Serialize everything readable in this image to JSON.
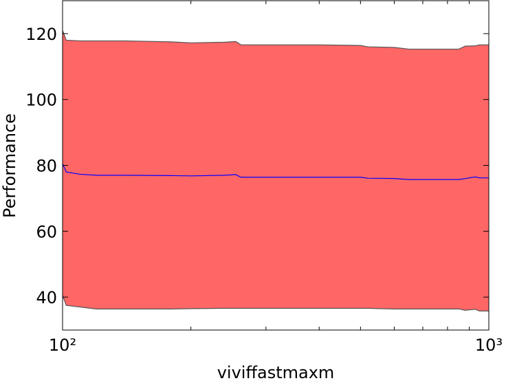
{
  "chart_data": {
    "type": "line",
    "xlabel": "viviffastmaxm",
    "ylabel": "Performance",
    "xscale": "log",
    "x": [
      100,
      102,
      110,
      120,
      140,
      180,
      200,
      240,
      255,
      262,
      400,
      500,
      520,
      600,
      650,
      850,
      880,
      930,
      950,
      1000
    ],
    "series": [
      {
        "color": "#0000ff",
        "values": [
          80.5,
          78,
          77.3,
          77,
          77,
          76.9,
          76.8,
          77,
          77.2,
          76.4,
          76.4,
          76.4,
          76.1,
          76,
          75.7,
          75.7,
          76,
          76.5,
          76.2,
          76.2
        ]
      }
    ],
    "band": {
      "color": "#ff6666",
      "edge_color": "#555555",
      "upper": [
        121,
        118,
        117.8,
        117.8,
        117.8,
        117.5,
        117.2,
        117.4,
        117.6,
        116.6,
        116.6,
        116.4,
        116,
        115.8,
        115.3,
        115.3,
        116.2,
        116.3,
        116.6,
        116.6
      ],
      "lower": [
        40.5,
        37.5,
        37,
        36.4,
        36.4,
        36.4,
        36.5,
        36.6,
        36.6,
        36.6,
        36.6,
        36.6,
        36.6,
        36.4,
        36.4,
        36.4,
        36,
        36.3,
        35.8,
        35.8
      ]
    },
    "xlim": [
      100,
      1000
    ],
    "ylim": [
      30,
      130
    ],
    "xticks": [
      {
        "value": 100,
        "label": "10²"
      },
      {
        "value": 1000,
        "label": "10³"
      }
    ],
    "xminorticks": [
      200,
      300,
      400,
      500,
      600,
      700,
      800,
      900
    ],
    "yticks": [
      40,
      60,
      80,
      100,
      120
    ]
  }
}
